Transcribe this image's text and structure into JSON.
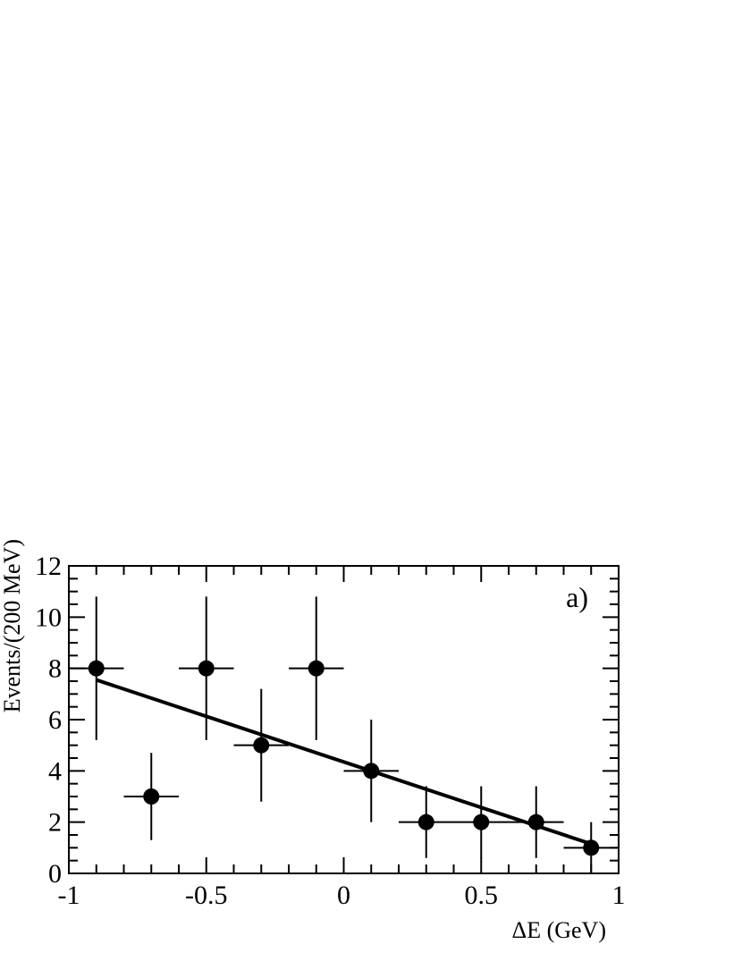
{
  "chart_data": {
    "type": "scatter",
    "title": "",
    "xlabel": "ΔE (GeV)",
    "ylabel": "Events/(200 MeV)",
    "annotation": "a)",
    "xlim": [
      -1,
      1
    ],
    "ylim": [
      0,
      12
    ],
    "x_ticks": [
      -1,
      -0.5,
      0,
      0.5,
      1
    ],
    "x_tick_labels": [
      "-1",
      "-0.5",
      "0",
      "0.5",
      "1"
    ],
    "y_ticks": [
      0,
      2,
      4,
      6,
      8,
      10,
      12
    ],
    "y_tick_labels": [
      "0",
      "2",
      "4",
      "6",
      "8",
      "10",
      "12"
    ],
    "grid": false,
    "series": [
      {
        "points": [
          {
            "x": -0.9,
            "y": 8,
            "xerr": 0.1,
            "yerr_low": 2.8,
            "yerr_high": 2.8
          },
          {
            "x": -0.7,
            "y": 3,
            "xerr": 0.1,
            "yerr_low": 1.7,
            "yerr_high": 1.7
          },
          {
            "x": -0.5,
            "y": 8,
            "xerr": 0.1,
            "yerr_low": 2.8,
            "yerr_high": 2.8
          },
          {
            "x": -0.3,
            "y": 5,
            "xerr": 0.1,
            "yerr_low": 2.2,
            "yerr_high": 2.2
          },
          {
            "x": -0.1,
            "y": 8,
            "xerr": 0.1,
            "yerr_low": 2.8,
            "yerr_high": 2.8
          },
          {
            "x": 0.1,
            "y": 4,
            "xerr": 0.1,
            "yerr_low": 2.0,
            "yerr_high": 2.0
          },
          {
            "x": 0.3,
            "y": 2,
            "xerr": 0.1,
            "yerr_low": 1.4,
            "yerr_high": 1.4
          },
          {
            "x": 0.5,
            "y": 2,
            "xerr": 0.1,
            "yerr_low": 1.4,
            "yerr_high": 1.4
          },
          {
            "x": 0.7,
            "y": 2,
            "xerr": 0.1,
            "yerr_low": 1.4,
            "yerr_high": 1.4
          },
          {
            "x": 0.9,
            "y": 1,
            "xerr": 0.1,
            "yerr_low": 1.0,
            "yerr_high": 1.0
          }
        ]
      }
    ],
    "fit_line": {
      "x": [
        -0.9,
        0.9
      ],
      "y": [
        7.55,
        1.15
      ]
    }
  }
}
